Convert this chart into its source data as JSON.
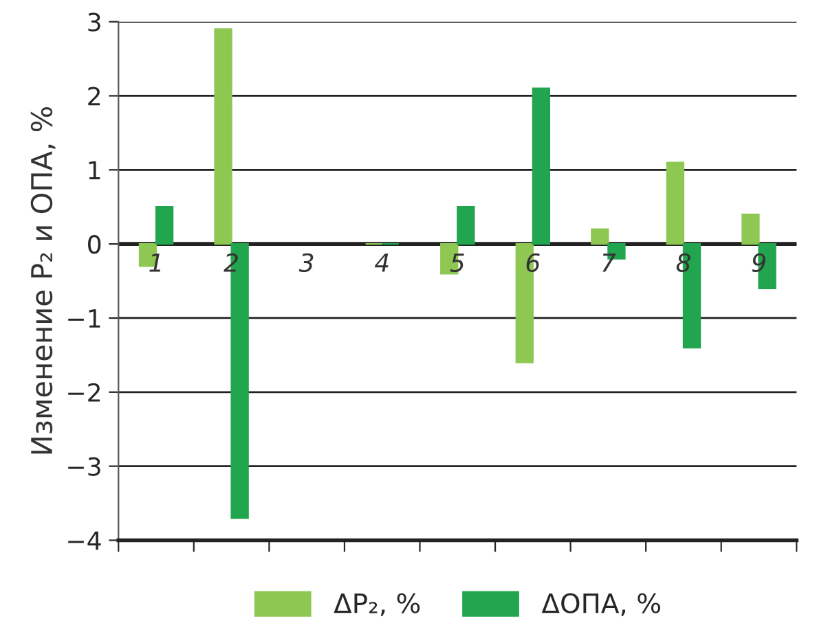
{
  "chart_data": {
    "type": "bar",
    "ylabel": "Изменение P₂ и ОПА, %",
    "categories": [
      "1",
      "2",
      "3",
      "4",
      "5",
      "6",
      "7",
      "8",
      "9"
    ],
    "series": [
      {
        "name": "ΔP₂, %",
        "color": "#8fc753",
        "values": [
          -0.3,
          2.9,
          null,
          0,
          -0.4,
          -1.6,
          0.2,
          1.1,
          0.4
        ]
      },
      {
        "name": "ΔОПА, %",
        "color": "#21a54e",
        "values": [
          0.5,
          -3.7,
          null,
          0,
          0.5,
          2.1,
          -0.2,
          -1.4,
          -0.6
        ]
      }
    ],
    "ylim": [
      -4,
      3
    ],
    "yticks": [
      {
        "value": -4,
        "label": "−4"
      },
      {
        "value": -3,
        "label": "−3"
      },
      {
        "value": -2,
        "label": "−2"
      },
      {
        "value": -1,
        "label": "−1"
      },
      0,
      1,
      2,
      3
    ],
    "grid": "y",
    "legend": "bottom"
  }
}
